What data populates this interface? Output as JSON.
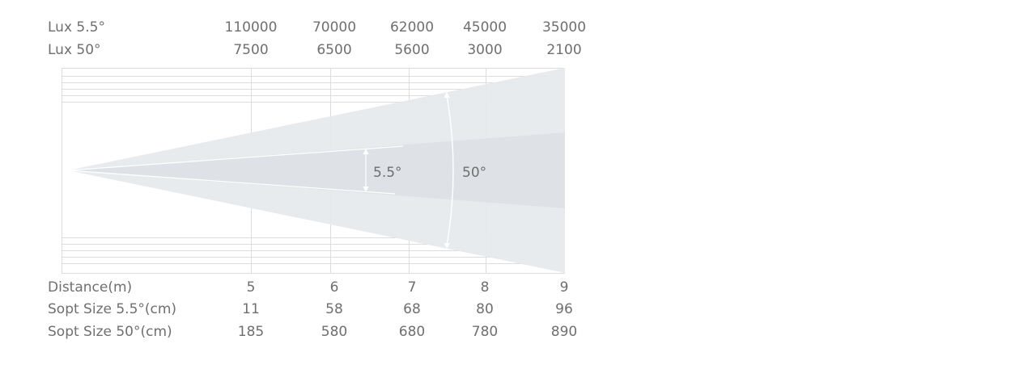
{
  "lux_narrow": {
    "label": "Lux 5.5°",
    "values": [
      "110000",
      "70000",
      "62000",
      "45000",
      "35000"
    ]
  },
  "lux_wide": {
    "label": "Lux 50°",
    "values": [
      "7500",
      "6500",
      "5600",
      "3000",
      "2100"
    ]
  },
  "distance": {
    "label": "Distance(m)",
    "values": [
      "5",
      "6",
      "7",
      "8",
      "9"
    ]
  },
  "spot_narrow": {
    "label": "Sopt Size 5.5°(cm)",
    "values": [
      "11",
      "58",
      "68",
      "80",
      "96"
    ]
  },
  "spot_wide": {
    "label": "Sopt Size 50°(cm)",
    "values": [
      "185",
      "580",
      "680",
      "780",
      "890"
    ]
  },
  "diagram": {
    "narrow_angle_label": "5.5°",
    "wide_angle_label": "50°"
  },
  "colors": {
    "wide_beam": "#e6e9ec",
    "narrow_beam": "#dde2e7",
    "grid": "#dcdcdc",
    "text": "#6f6f6f"
  }
}
